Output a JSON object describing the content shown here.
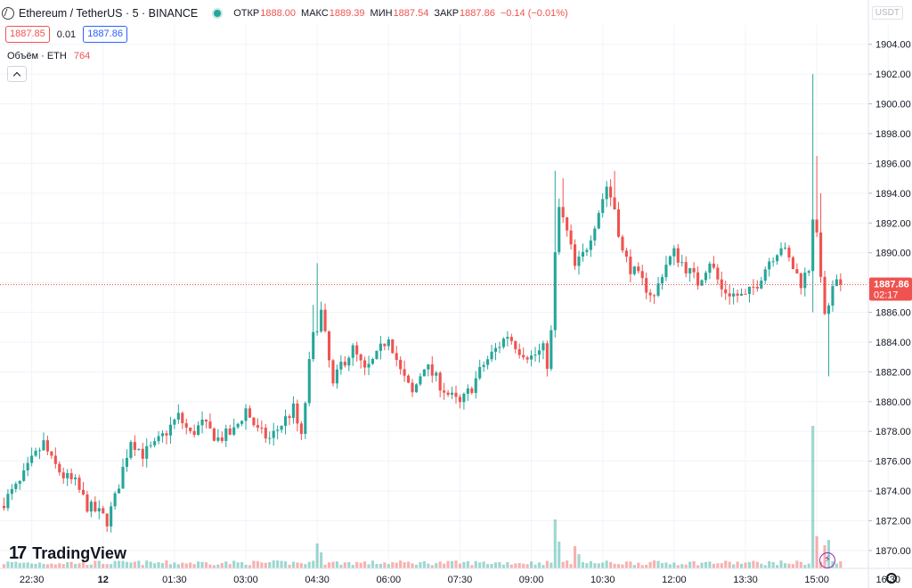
{
  "header": {
    "title": "Ethereum / TetherUS · 5 · BINANCE",
    "open_label": "ОТКР",
    "open": "1888.00",
    "high_label": "МАКС",
    "high": "1889.39",
    "low_label": "МИН",
    "low": "1887.54",
    "close_label": "ЗАКР",
    "close": "1887.86",
    "change": "−0.14 (−0.01%)",
    "sell_price": "1887.85",
    "spread": "0.01",
    "buy_price": "1887.86"
  },
  "volume_legend": {
    "label": "Объём · ETH",
    "value": "764"
  },
  "price_scale": {
    "unit": "USDT",
    "last_price": "1887.86",
    "countdown": "02:17"
  },
  "logo_text": "TradingView",
  "colors": {
    "up": "#26a69a",
    "down": "#ef5350",
    "grid": "#f0f3fa",
    "axis_text": "#131722"
  },
  "icons": [
    "ethereum-symbol-icon",
    "market-open-dot-icon",
    "collapse-chevron-icon",
    "lightning-icon",
    "gear-icon"
  ],
  "chart_data": {
    "type": "candlestick",
    "title": "Ethereum / TetherUS · 5 · BINANCE",
    "ylim": [
      1868.8,
      1905.3
    ],
    "y_ticks": [
      1870,
      1872,
      1874,
      1876,
      1878,
      1880,
      1882,
      1884,
      1886,
      1888,
      1890,
      1892,
      1894,
      1896,
      1898,
      1900,
      1902,
      1904
    ],
    "x_ticks": [
      "22:30",
      "12",
      "01:30",
      "03:00",
      "04:30",
      "06:00",
      "07:30",
      "09:00",
      "10:30",
      "12:00",
      "13:30",
      "15:00",
      "16:30"
    ],
    "x_ticks_minutes": [
      -90,
      0,
      90,
      180,
      270,
      360,
      450,
      540,
      630,
      720,
      810,
      900,
      990
    ],
    "x_range_minutes": [
      -130,
      965
    ],
    "bar_interval_minutes": 5,
    "last_price": 1887.86,
    "waypoints": [
      [
        -125,
        1873.0
      ],
      [
        -100,
        1874.5
      ],
      [
        -85,
        1876.0
      ],
      [
        -70,
        1877.2
      ],
      [
        -60,
        1876.0
      ],
      [
        -45,
        1875.0
      ],
      [
        -30,
        1874.5
      ],
      [
        -15,
        1873.0
      ],
      [
        0,
        1872.5
      ],
      [
        10,
        1872.0
      ],
      [
        20,
        1873.5
      ],
      [
        30,
        1875.5
      ],
      [
        40,
        1877.5
      ],
      [
        55,
        1876.5
      ],
      [
        70,
        1877.0
      ],
      [
        85,
        1878.0
      ],
      [
        100,
        1879.0
      ],
      [
        115,
        1877.8
      ],
      [
        130,
        1878.5
      ],
      [
        150,
        1877.5
      ],
      [
        170,
        1878.0
      ],
      [
        185,
        1879.5
      ],
      [
        200,
        1878.0
      ],
      [
        215,
        1877.5
      ],
      [
        230,
        1878.5
      ],
      [
        245,
        1879.5
      ],
      [
        255,
        1877.5
      ],
      [
        268,
        1884.0
      ],
      [
        280,
        1886.0
      ],
      [
        295,
        1881.0
      ],
      [
        305,
        1882.5
      ],
      [
        320,
        1883.5
      ],
      [
        335,
        1882.0
      ],
      [
        350,
        1883.0
      ],
      [
        365,
        1884.5
      ],
      [
        380,
        1882.0
      ],
      [
        395,
        1880.5
      ],
      [
        410,
        1882.5
      ],
      [
        425,
        1881.5
      ],
      [
        440,
        1880.5
      ],
      [
        455,
        1879.8
      ],
      [
        470,
        1881.0
      ],
      [
        485,
        1882.5
      ],
      [
        500,
        1883.5
      ],
      [
        515,
        1884.5
      ],
      [
        530,
        1883.5
      ],
      [
        545,
        1883.0
      ],
      [
        560,
        1883.5
      ],
      [
        568,
        1882.0
      ],
      [
        573,
        1888.5
      ],
      [
        580,
        1893.0
      ],
      [
        592,
        1891.0
      ],
      [
        600,
        1889.0
      ],
      [
        612,
        1890.0
      ],
      [
        625,
        1892.0
      ],
      [
        640,
        1894.5
      ],
      [
        650,
        1893.0
      ],
      [
        660,
        1890.0
      ],
      [
        670,
        1889.0
      ],
      [
        685,
        1888.0
      ],
      [
        700,
        1887.0
      ],
      [
        712,
        1889.0
      ],
      [
        725,
        1890.0
      ],
      [
        740,
        1889.0
      ],
      [
        755,
        1888.0
      ],
      [
        770,
        1889.5
      ],
      [
        785,
        1887.5
      ],
      [
        800,
        1887.2
      ],
      [
        815,
        1887.0
      ],
      [
        830,
        1888.0
      ],
      [
        845,
        1889.5
      ],
      [
        860,
        1890.5
      ],
      [
        875,
        1889.0
      ],
      [
        885,
        1888.0
      ],
      [
        895,
        1889.0
      ],
      [
        900,
        1892.5
      ],
      [
        908,
        1890.0
      ],
      [
        915,
        1885.5
      ],
      [
        925,
        1887.5
      ],
      [
        930,
        1887.9
      ]
    ],
    "spikes": [
      {
        "t": 895,
        "high": 1902.0,
        "low": 1886.0
      },
      {
        "t": 900,
        "high": 1896.5
      },
      {
        "t": 905,
        "high": 1894.0
      },
      {
        "t": 915,
        "low": 1881.7
      },
      {
        "t": 570,
        "high": 1895.5
      },
      {
        "t": 580,
        "high": 1895.0
      },
      {
        "t": 645,
        "high": 1895.5
      },
      {
        "t": 270,
        "high": 1889.3
      },
      {
        "t": 265,
        "high": 1886.5
      }
    ],
    "volume_spikes": [
      {
        "t": 895,
        "v": 16
      },
      {
        "t": 900,
        "v": 3.6
      },
      {
        "t": 910,
        "v": 2.6
      },
      {
        "t": 915,
        "v": 3.2
      },
      {
        "t": 570,
        "v": 5.5
      },
      {
        "t": 575,
        "v": 3.0
      },
      {
        "t": 595,
        "v": 2.5
      },
      {
        "t": 600,
        "v": 1.6
      },
      {
        "t": 270,
        "v": 2.8
      },
      {
        "t": 275,
        "v": 1.8
      }
    ],
    "volume_base": 0.6
  }
}
